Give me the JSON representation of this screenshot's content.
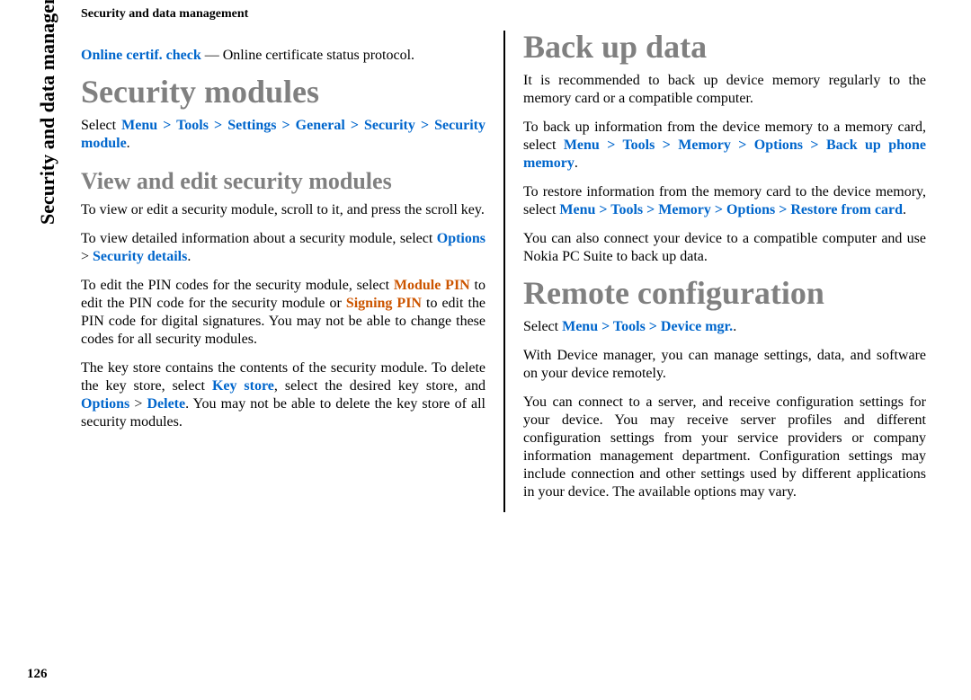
{
  "header": {
    "title": "Security and data management"
  },
  "side_label": "Security and data management",
  "page_number": "126",
  "left_col": {
    "p1": {
      "label": "Online certif. check",
      "rest": "  — Online certificate status protocol."
    },
    "h1": "Security modules",
    "p2": {
      "pre": "Select ",
      "path": "Menu > Tools > Settings > General > Security > Security module",
      "post": "."
    },
    "h2": "View and edit security modules",
    "p3": "To view or edit a security module, scroll to it, and press the scroll key.",
    "p4": {
      "pre": "To view detailed information about a security module, select ",
      "opt": "Options",
      "gt": " > ",
      "sd": "Security details",
      "post": "."
    },
    "p5": {
      "a": "To edit the PIN codes for the security module, select ",
      "mpin": "Module PIN",
      "b": " to edit the PIN code for the security module or ",
      "spin": "Signing PIN",
      "c": " to edit the PIN code for digital signatures. You may not be able to change these codes for all security modules."
    },
    "p6": {
      "a": "The key store contains the contents of the security module. To delete the key store, select ",
      "ks": "Key store",
      "b": ", select the desired key store, and ",
      "opt": "Options",
      "gt": " > ",
      "del": "Delete",
      "c": ". You may not be able to delete the key store of all security modules."
    }
  },
  "right_col": {
    "h1a": "Back up data",
    "p1": "It is recommended to back up device memory regularly to the memory card or a compatible computer.",
    "p2": {
      "a": "To back up information from the device memory to a memory card, select ",
      "path": "Menu > Tools > Memory > Options > Back up phone memory",
      "b": "."
    },
    "p3": {
      "a": "To restore information from the memory card to the device memory, select ",
      "path": "Menu > Tools > Memory > Options > Restore from card",
      "b": "."
    },
    "p4": "You can also connect your device to a compatible computer and use Nokia PC Suite to back up data.",
    "h1b": "Remote configuration",
    "p5": {
      "a": "Select ",
      "path": "Menu > Tools > Device mgr.",
      "b": "."
    },
    "p6": "With Device manager, you can manage settings, data, and software on your device remotely.",
    "p7": "You can connect to a server, and receive configuration settings for your device. You may receive server profiles and different configuration settings from your service providers or company information management department. Configuration settings may include connection and other settings used by different applications in your device. The available options may vary."
  }
}
